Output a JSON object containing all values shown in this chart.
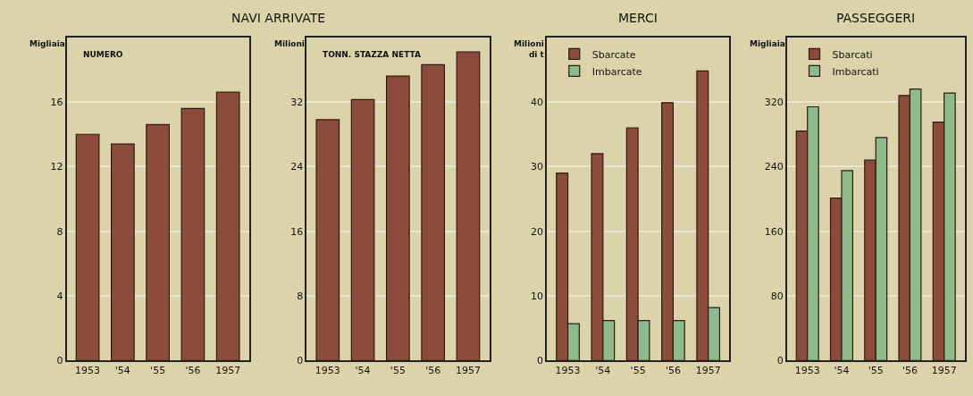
{
  "chart_data": [
    {
      "type": "bar",
      "title": "NAVI ARRIVATE",
      "subtitle": "NUMERO",
      "ylabel": "Migliaia",
      "categories": [
        "1953",
        "'54",
        "'55",
        "'56",
        "1957"
      ],
      "values": [
        14.0,
        13.4,
        14.6,
        15.6,
        16.6
      ],
      "color": "#8b4c3c",
      "ylim": [
        0,
        20
      ],
      "yticks": [
        0,
        4,
        8,
        12,
        16
      ],
      "grid": "y"
    },
    {
      "type": "bar",
      "subtitle": "TONN. STAZZA NETTA",
      "ylabel": "Milioni",
      "categories": [
        "1953",
        "'54",
        "'55",
        "'56",
        "1957"
      ],
      "values": [
        29.8,
        32.3,
        35.2,
        36.6,
        38.2
      ],
      "color": "#8b4c3c",
      "ylim": [
        0,
        40
      ],
      "yticks": [
        0,
        8,
        16,
        24,
        32
      ],
      "grid": "y"
    },
    {
      "type": "bar",
      "title": "MERCI",
      "ylabel": "Milioni\ndi t",
      "categories": [
        "1953",
        "'54",
        "'55",
        "'56",
        "1957"
      ],
      "series": [
        {
          "name": "Sbarcate",
          "color": "#8b4c3c",
          "values": [
            29.0,
            32.0,
            36.0,
            39.9,
            44.8
          ]
        },
        {
          "name": "Imbarcate",
          "color": "#8fba8c",
          "values": [
            5.7,
            6.2,
            6.2,
            6.2,
            8.2
          ]
        }
      ],
      "ylim": [
        0,
        50
      ],
      "yticks": [
        0,
        10,
        20,
        30,
        40
      ],
      "grid": "y",
      "legend": "top left"
    },
    {
      "type": "bar",
      "title": "PASSEGGERI",
      "ylabel": "Migliaia",
      "categories": [
        "1953",
        "'54",
        "'55",
        "'56",
        "1957"
      ],
      "series": [
        {
          "name": "Sbarcati",
          "color": "#8b4c3c",
          "values": [
            284,
            201,
            248,
            328,
            295
          ]
        },
        {
          "name": "Imbarcati",
          "color": "#8fba8c",
          "values": [
            314,
            235,
            276,
            336,
            331
          ]
        }
      ],
      "ylim": [
        0,
        400
      ],
      "yticks": [
        0,
        80,
        160,
        240,
        320
      ],
      "grid": "y",
      "legend": "top left"
    }
  ]
}
